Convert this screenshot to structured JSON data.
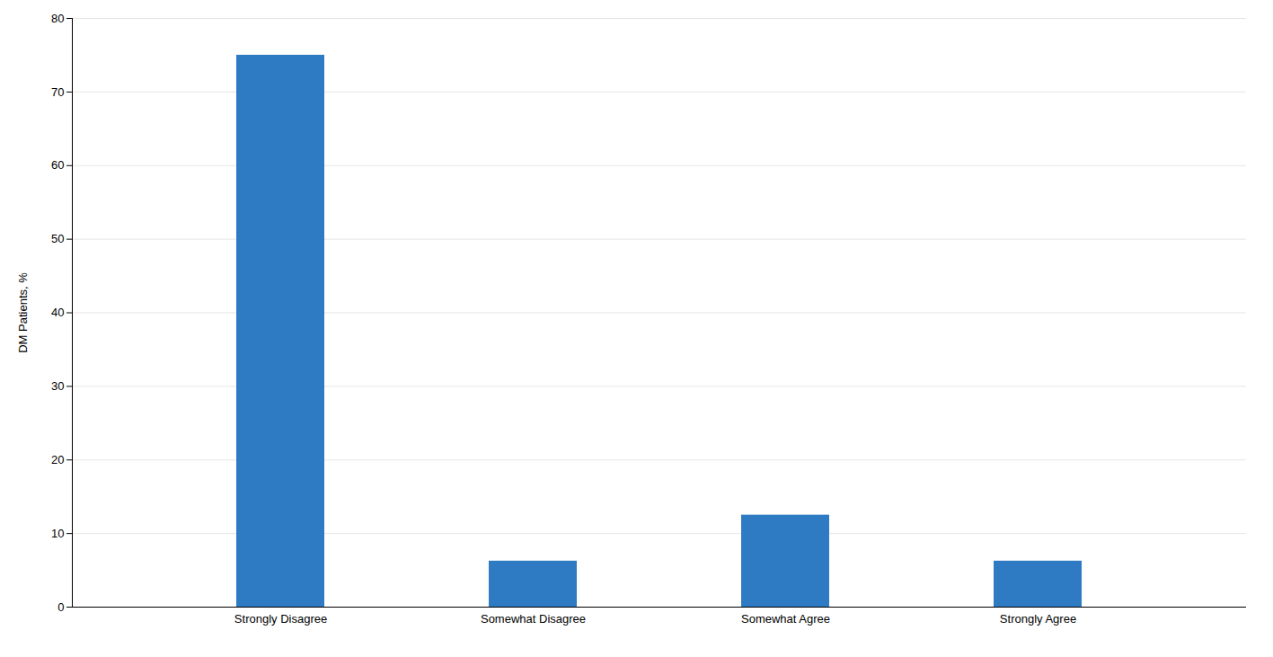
{
  "chart_data": {
    "type": "bar",
    "categories": [
      "Strongly Disagree",
      "Somewhat Disagree",
      "Somewhat Agree",
      "Strongly Agree"
    ],
    "values": [
      75.0,
      6.25,
      12.5,
      6.25
    ],
    "color": "#2e7bc4",
    "ylabel": "DM Patients, %",
    "ylim": [
      0,
      80
    ],
    "yticks": [
      0,
      10,
      20,
      30,
      40,
      50,
      60,
      70,
      80
    ],
    "grid": true
  }
}
